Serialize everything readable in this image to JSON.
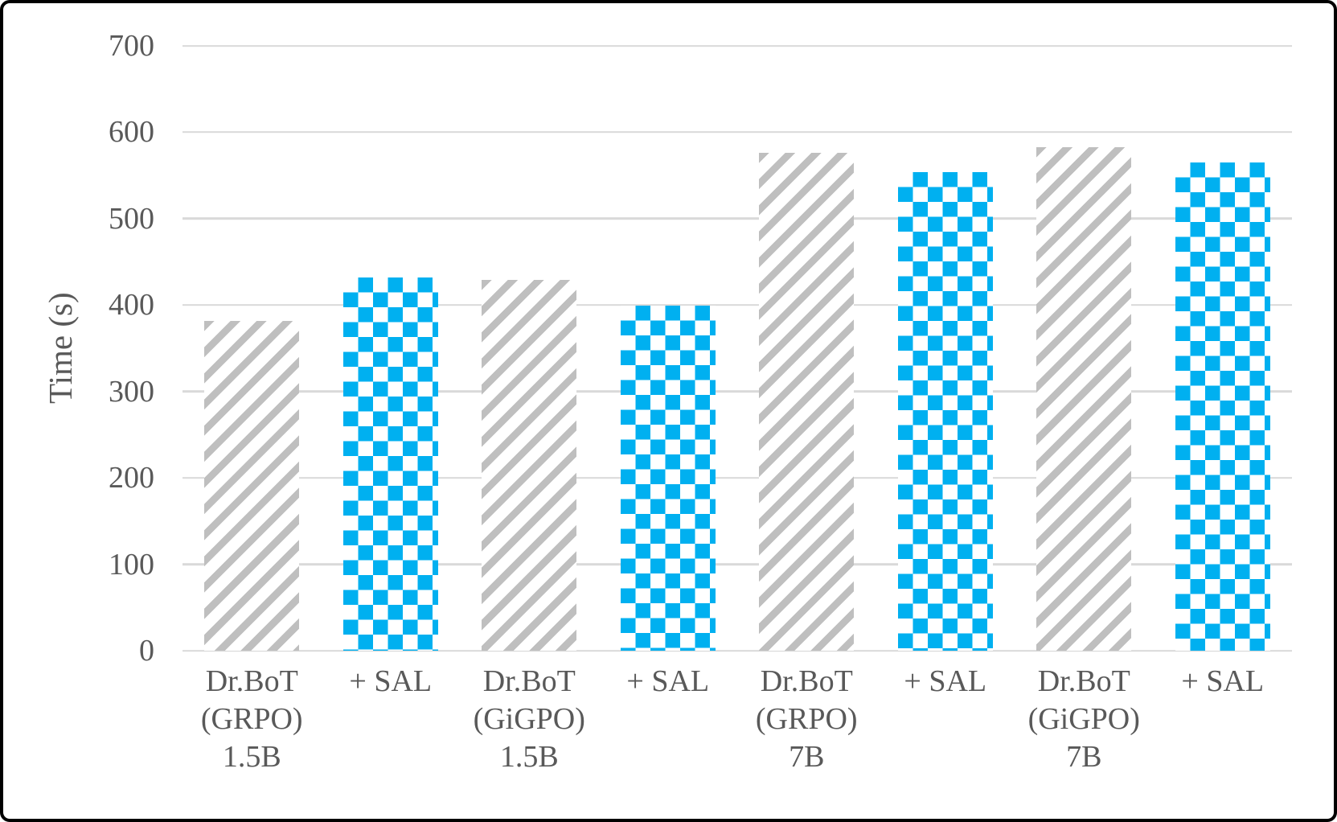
{
  "chart_data": {
    "type": "bar",
    "title": "",
    "xlabel": "",
    "ylabel": "Time (s)",
    "ylim": [
      0,
      700
    ],
    "yticks": [
      0,
      100,
      200,
      300,
      400,
      500,
      600,
      700
    ],
    "grid": true,
    "legend": "none",
    "bars": [
      {
        "label": "Dr.BoT\n(GRPO)\n1.5B",
        "value": 382,
        "pattern": "gray-diagonal-stripes"
      },
      {
        "label": "+ SAL",
        "value": 432,
        "pattern": "blue-checkerboard"
      },
      {
        "label": "Dr.BoT\n(GiGPO)\n1.5B",
        "value": 429,
        "pattern": "gray-diagonal-stripes"
      },
      {
        "label": "+ SAL",
        "value": 399,
        "pattern": "blue-checkerboard"
      },
      {
        "label": "Dr.BoT\n(GRPO)\n7B",
        "value": 576,
        "pattern": "gray-diagonal-stripes"
      },
      {
        "label": "+ SAL",
        "value": 554,
        "pattern": "blue-checkerboard"
      },
      {
        "label": "Dr.BoT\n(GiGPO)\n7B",
        "value": 583,
        "pattern": "gray-diagonal-stripes"
      },
      {
        "label": "+ SAL",
        "value": 565,
        "pattern": "blue-checkerboard"
      }
    ],
    "colors": {
      "stripe_gray": "#BFBFBF",
      "checker_blue": "#00B0F0",
      "gridline": "#D9D9D9",
      "axis_text": "#595959",
      "frame_border": "#000000",
      "background": "#FFFFFF"
    }
  }
}
